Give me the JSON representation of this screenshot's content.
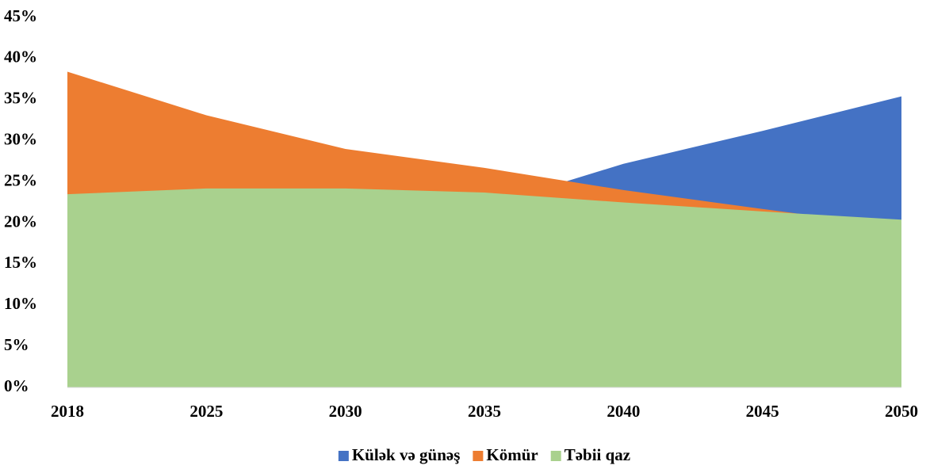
{
  "chart_data": {
    "type": "area",
    "categories": [
      "2018",
      "2025",
      "2030",
      "2035",
      "2040",
      "2045",
      "2050"
    ],
    "series": [
      {
        "name": "Külək və günəş",
        "color": "#4472c4",
        "values": [
          7,
          12,
          17,
          22,
          27.2,
          31.2,
          35.4
        ]
      },
      {
        "name": "Kömür",
        "color": "#ed7d31",
        "values": [
          38.4,
          33.1,
          29.0,
          26.7,
          24.0,
          21.7,
          19.5
        ]
      },
      {
        "name": "Təbii qaz",
        "color": "#a9d18e",
        "values": [
          23.5,
          24.2,
          24.2,
          23.7,
          22.5,
          21.4,
          20.4
        ]
      }
    ],
    "ylim": [
      0,
      45
    ],
    "yticks": [
      {
        "value": 0,
        "label": "0%"
      },
      {
        "value": 5,
        "label": "5%"
      },
      {
        "value": 10,
        "label": "10%"
      },
      {
        "value": 15,
        "label": "15%"
      },
      {
        "value": 20,
        "label": "20%"
      },
      {
        "value": 25,
        "label": "25%"
      },
      {
        "value": 30,
        "label": "30%"
      },
      {
        "value": 35,
        "label": "35%"
      },
      {
        "value": 40,
        "label": "40%"
      },
      {
        "value": 45,
        "label": "45%"
      }
    ],
    "legend": "bottom"
  }
}
